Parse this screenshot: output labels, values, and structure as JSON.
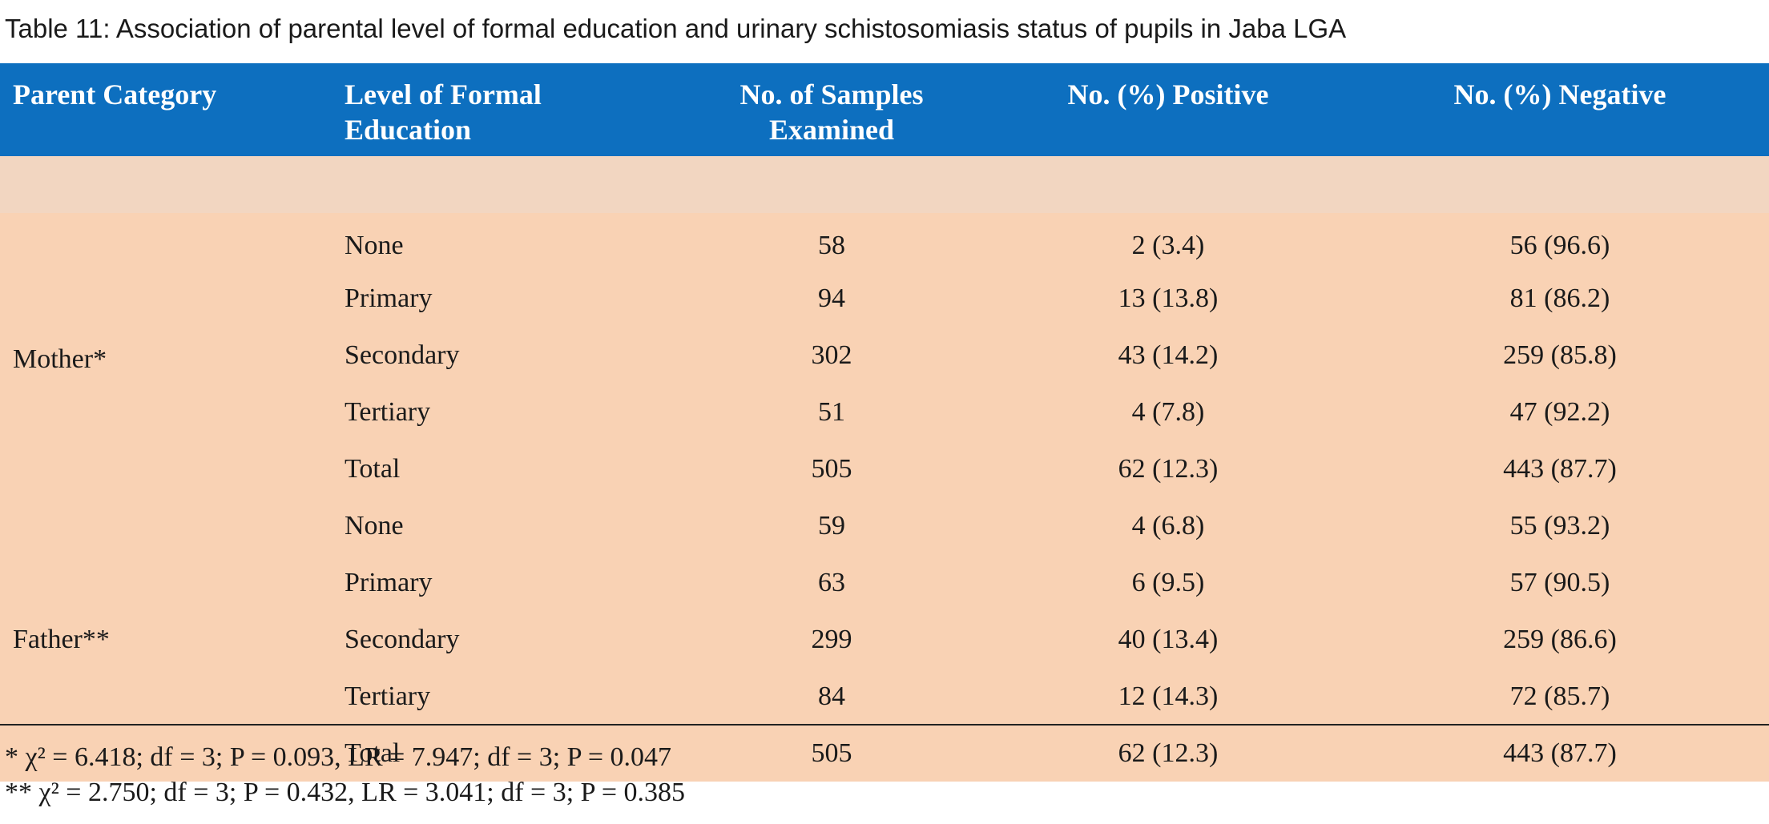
{
  "caption": "Table 11: Association of parental level of formal education and urinary schistosomiasis status of pupils in Jaba LGA",
  "header": {
    "parent_category": "Parent Category",
    "level_line1": "Level of Formal",
    "level_line2": "Education",
    "samples_line1": "No. of Samples",
    "samples_line2": "Examined",
    "positive": "No. (%) Positive",
    "negative": "No. (%) Negative"
  },
  "groups": [
    {
      "category": "Mother*",
      "rows": [
        {
          "level": "None",
          "samples": "58",
          "positive": "2 (3.4)",
          "negative": "56 (96.6)"
        },
        {
          "level": "Primary",
          "samples": "94",
          "positive": "13 (13.8)",
          "negative": "81 (86.2)"
        },
        {
          "level": "Secondary",
          "samples": "302",
          "positive": "43 (14.2)",
          "negative": "259 (85.8)"
        },
        {
          "level": "Tertiary",
          "samples": "51",
          "positive": "4 (7.8)",
          "negative": "47 (92.2)"
        },
        {
          "level": "Total",
          "samples": "505",
          "positive": "62 (12.3)",
          "negative": "443 (87.7)"
        }
      ]
    },
    {
      "category": "Father**",
      "rows": [
        {
          "level": "None",
          "samples": "59",
          "positive": "4 (6.8)",
          "negative": "55 (93.2)"
        },
        {
          "level": "Primary",
          "samples": "63",
          "positive": "6 (9.5)",
          "negative": "57 (90.5)"
        },
        {
          "level": "Secondary",
          "samples": "299",
          "positive": "40 (13.4)",
          "negative": "259 (86.6)"
        },
        {
          "level": "Tertiary",
          "samples": "84",
          "positive": "12 (14.3)",
          "negative": "72 (85.7)"
        },
        {
          "level": "Total",
          "samples": "505",
          "positive": "62 (12.3)",
          "negative": "443 (87.7)"
        }
      ]
    }
  ],
  "footnotes": [
    "* χ² = 6.418; df = 3; P = 0.093, LR = 7.947; df = 3; P = 0.047",
    "** χ² = 2.750; df = 3; P = 0.432, LR = 3.041; df = 3; P = 0.385"
  ],
  "colors": {
    "header_bg": "#0d6fbf",
    "body_bg": "#f9d2b4"
  }
}
